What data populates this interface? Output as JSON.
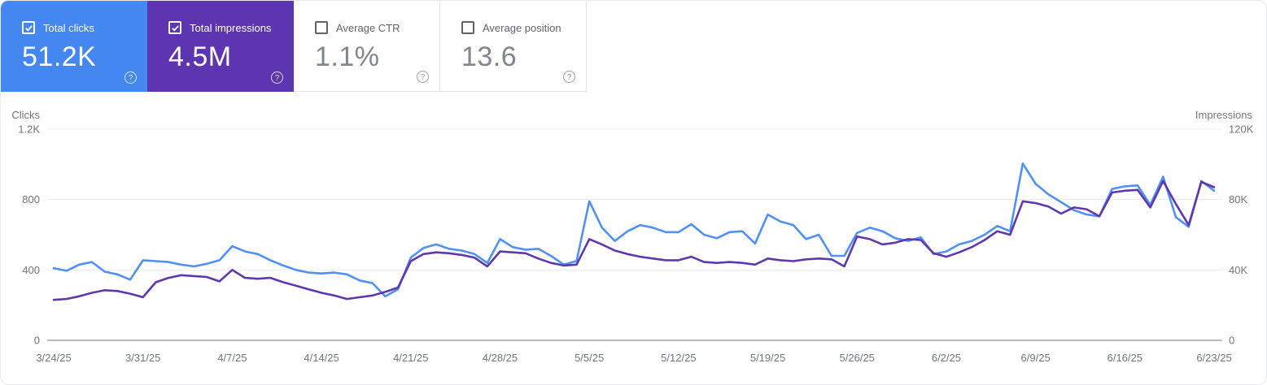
{
  "help_glyph": "?",
  "cards": [
    {
      "label": "Total clicks",
      "value": "51.2K",
      "checked": true,
      "bg": "#4587f1",
      "text": "#ffffff"
    },
    {
      "label": "Total impressions",
      "value": "4.5M",
      "checked": true,
      "bg": "#5e35b1",
      "text": "#ffffff"
    },
    {
      "label": "Average CTR",
      "value": "1.1%",
      "checked": false,
      "bg": null,
      "text": "#80868b"
    },
    {
      "label": "Average position",
      "value": "13.6",
      "checked": false,
      "bg": null,
      "text": "#80868b"
    }
  ],
  "colors": {
    "clicks_line": "#5191f3",
    "impressions_line": "#6038ae",
    "grid": "#ebedef",
    "baseline": "#b9bdc2",
    "axis_text": "#70757a"
  },
  "chart_data": {
    "type": "line",
    "frequency": "daily",
    "x_start": "3/24/25",
    "x_end": "6/23/25",
    "x_tick_labels": [
      "3/24/25",
      "3/31/25",
      "4/7/25",
      "4/14/25",
      "4/21/25",
      "4/28/25",
      "5/5/25",
      "5/12/25",
      "5/19/25",
      "5/26/25",
      "6/2/25",
      "6/9/25",
      "6/16/25",
      "6/23/25"
    ],
    "left_axis": {
      "title": "Clicks",
      "ticks": [
        "1.2K",
        "800",
        "400",
        "0"
      ],
      "max": 1200,
      "min": 0
    },
    "right_axis": {
      "title": "Impressions",
      "ticks": [
        "120K",
        "80K",
        "40K",
        "0"
      ],
      "max": 120000,
      "min": 0
    },
    "grid": "horizontal-only",
    "legend_position": "none",
    "series": [
      {
        "name": "Total clicks",
        "axis": "left",
        "color": "#5191f3",
        "values": [
          410,
          395,
          430,
          445,
          390,
          375,
          345,
          455,
          450,
          445,
          430,
          420,
          435,
          455,
          535,
          505,
          490,
          455,
          425,
          400,
          385,
          380,
          385,
          375,
          340,
          325,
          250,
          290,
          470,
          525,
          545,
          520,
          510,
          490,
          440,
          575,
          530,
          515,
          520,
          480,
          430,
          450,
          790,
          640,
          565,
          620,
          655,
          640,
          615,
          615,
          660,
          600,
          580,
          615,
          620,
          550,
          715,
          675,
          655,
          575,
          600,
          480,
          480,
          610,
          640,
          620,
          580,
          565,
          585,
          490,
          505,
          545,
          565,
          600,
          650,
          620,
          1005,
          890,
          830,
          785,
          740,
          715,
          705,
          860,
          875,
          880,
          770,
          930,
          700,
          645,
          905,
          850
        ]
      },
      {
        "name": "Total impressions",
        "axis": "right",
        "color": "#6038ae",
        "values": [
          23000,
          23500,
          25000,
          27000,
          28500,
          28000,
          26500,
          24500,
          33000,
          35500,
          37000,
          36500,
          36000,
          33500,
          40000,
          35500,
          35000,
          35500,
          33000,
          31000,
          29000,
          27000,
          25500,
          23500,
          24500,
          25500,
          27500,
          30000,
          45000,
          49000,
          50000,
          49500,
          48500,
          47000,
          42000,
          50500,
          50000,
          49500,
          46500,
          44000,
          42500,
          43000,
          57500,
          54500,
          51000,
          49000,
          47500,
          46500,
          45500,
          45500,
          47500,
          44500,
          44000,
          44500,
          44000,
          43000,
          46500,
          45500,
          45000,
          46000,
          46500,
          46000,
          42000,
          59000,
          57500,
          54500,
          55500,
          57500,
          57000,
          49500,
          47500,
          50000,
          53000,
          57000,
          62000,
          60000,
          79000,
          78000,
          76000,
          72000,
          75500,
          74500,
          70500,
          84000,
          85000,
          85500,
          75500,
          90500,
          77500,
          65500,
          90000,
          87000
        ]
      }
    ]
  }
}
